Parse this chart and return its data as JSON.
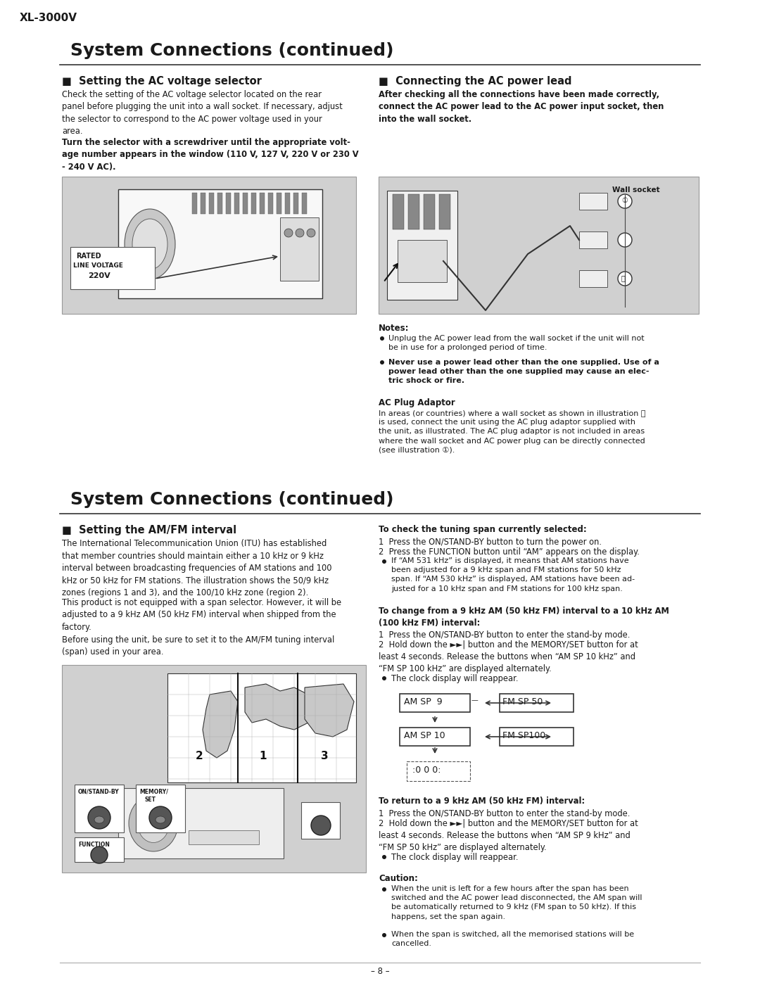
{
  "page_title": "XL-3000V",
  "bg_color": "#ffffff",
  "text_color": "#1a1a1a",
  "section1_title": "System Connections (continued)",
  "col1_heading": "■  Setting the AC voltage selector",
  "col1_body1": "Check the setting of the AC voltage selector located on the rear\npanel before plugging the unit into a wall socket. If necessary, adjust\nthe selector to correspond to the AC power voltage used in your\narea.",
  "col1_body2": "Turn the selector with a screwdriver until the appropriate volt-\nage number appears in the window (110 V, 127 V, 220 V or 230 V\n- 240 V AC).",
  "col2_heading": "■  Connecting the AC power lead",
  "col2_body1_bold": "After checking all the connections have been made correctly,\nconnect the AC power lead to the AC power input socket, then\ninto the wall socket.",
  "notes_heading": "Notes:",
  "note1": "Unplug the AC power lead from the wall socket if the unit will not\nbe in use for a prolonged period of time.",
  "note2_bold": "Never use a power lead other than the one supplied. Use of a\npower lead other than the one supplied may cause an elec-\ntric shock or fire.",
  "ac_plug_heading": "AC Plug Adaptor",
  "ac_plug_body": "In areas (or countries) where a wall socket as shown in illustration Ⓑ\nis used, connect the unit using the AC plug adaptor supplied with\nthe unit, as illustrated. The AC plug adaptor is not included in areas\nwhere the wall socket and AC power plug can be directly connected\n(see illustration ①).",
  "wall_socket_label": "Wall socket",
  "section2_title": "System Connections (continued)",
  "col3_heading": "■  Setting the AM/FM interval",
  "col3_body1": "The International Telecommunication Union (ITU) has established\nthat member countries should maintain either a 10 kHz or 9 kHz\ninterval between broadcasting frequencies of AM stations and 100\nkHz or 50 kHz for FM stations. The illustration shows the 50/9 kHz\nzones (regions 1 and 3), and the 100/10 kHz zone (region 2).",
  "col3_body2": "This product is not equipped with a span selector. However, it will be\nadjusted to a 9 kHz AM (50 kHz FM) interval when shipped from the\nfactory.\nBefore using the unit, be sure to set it to the AM/FM tuning interval\n(span) used in your area.",
  "col4_heading": "To check the tuning span currently selected:",
  "col4_step1": "1  Press the ON/STAND-BY button to turn the power on.",
  "col4_step2": "2  Press the FUNCTION button until “AM” appears on the display.",
  "col4_note1": "If “AM 531 kHz” is displayed, it means that AM stations have\nbeen adjusted for a 9 kHz span and FM stations for 50 kHz\nspan. If “AM 530 kHz” is displayed, AM stations have been ad-\njusted for a 10 kHz span and FM stations for 100 kHz span.",
  "col4_change_heading": "To change from a 9 kHz AM (50 kHz FM) interval to a 10 kHz AM\n(100 kHz FM) interval:",
  "col4_change1": "1  Press the ON/STAND-BY button to enter the stand-by mode.",
  "col4_change2": "2  Hold down the ►►| button and the MEMORY/SET button for at\nleast 4 seconds. Release the buttons when “AM SP 10 kHz” and\n“FM SP 100 kHz” are displayed alternately.",
  "col4_change2b": "The clock display will reappear.",
  "col4_return_heading": "To return to a 9 kHz AM (50 kHz FM) interval:",
  "col4_return1": "1  Press the ON/STAND-BY button to enter the stand-by mode.",
  "col4_return2": "2  Hold down the ►►| button and the MEMORY/SET button for at\nleast 4 seconds. Release the buttons when “AM SP 9 kHz” and\n“FM SP 50 kHz” are displayed alternately.",
  "col4_return2b": "The clock display will reappear.",
  "caution_heading": "Caution:",
  "caution1": "When the unit is left for a few hours after the span has been\nswitched and the AC power lead disconnected, the AM span will\nbe automatically returned to 9 kHz (FM span to 50 kHz). If this\nhappens, set the span again.",
  "caution2": "When the span is switched, all the memorised stations will be\ncancelled.",
  "page_number": "– 8 –",
  "gray_bg": "#d0d0d0",
  "line_color": "#555555"
}
